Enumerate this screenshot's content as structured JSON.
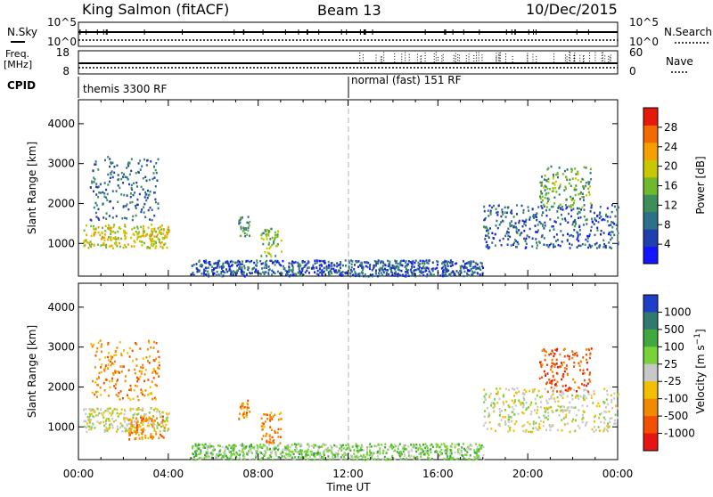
{
  "header": {
    "station": "King Salmon (fitACF)",
    "beam": "Beam 13",
    "date": "10/Dec/2015"
  },
  "status_panels": {
    "nsky_label": "N.Sky",
    "nsky_ticks": [
      "10^5",
      "10^0"
    ],
    "nsearch_label": "N.Search",
    "nsearch_ticks": [
      "10^5",
      "10^0"
    ],
    "freq_label": "Freq.",
    "freq_unit": "[MHz]",
    "freq_ticks": [
      "18",
      "8"
    ],
    "nave_label": "Nave",
    "nave_ticks": [
      "60",
      "0"
    ],
    "cpid_label": "CPID",
    "cpid_segments": [
      {
        "label": "themis 3300 RF",
        "start_h": 0,
        "end_h": 12
      },
      {
        "label": "normal (fast) 151 RF",
        "start_h": 12,
        "end_h": 24
      }
    ]
  },
  "chart_data": [
    {
      "type": "heatmap",
      "name": "power",
      "ylabel": "Slant Range [km]",
      "xlim": [
        0,
        24
      ],
      "ylim": [
        180,
        4600
      ],
      "yticks": [
        1000,
        2000,
        3000,
        4000
      ],
      "colorbar": {
        "label": "Power [dB]",
        "range": [
          0,
          32
        ],
        "ticks": [
          4,
          8,
          12,
          16,
          20,
          24,
          28
        ],
        "colors": [
          "#1414ff",
          "#1f3fae",
          "#2e6f8a",
          "#3c8f5a",
          "#6fba2c",
          "#c9c800",
          "#f5a000",
          "#f26a00",
          "#e51a0a"
        ]
      },
      "blobs": [
        {
          "t0": 0.2,
          "t1": 4.0,
          "r0": 900,
          "r1": 1500,
          "level": 20
        },
        {
          "t0": 0.5,
          "t1": 3.6,
          "r0": 1600,
          "r1": 3200,
          "level": 8
        },
        {
          "t0": 7.1,
          "t1": 7.6,
          "r0": 1200,
          "r1": 1700,
          "level": 12
        },
        {
          "t0": 8.1,
          "t1": 9.0,
          "r0": 700,
          "r1": 1400,
          "level": 16
        },
        {
          "t0": 5.0,
          "t1": 18.0,
          "r0": 200,
          "r1": 600,
          "level": 6
        },
        {
          "t0": 18.0,
          "t1": 24.0,
          "r0": 900,
          "r1": 2000,
          "level": 6
        },
        {
          "t0": 20.5,
          "t1": 22.8,
          "r0": 1900,
          "r1": 3000,
          "level": 14
        }
      ]
    },
    {
      "type": "heatmap",
      "name": "velocity",
      "ylabel": "Slant Range [km]",
      "xlabel": "Time UT",
      "xlim": [
        0,
        24
      ],
      "ylim": [
        180,
        4600
      ],
      "yticks": [
        1000,
        2000,
        3000,
        4000
      ],
      "xticks": [
        "00:00",
        "04:00",
        "08:00",
        "12:00",
        "16:00",
        "20:00",
        "00:00"
      ],
      "colorbar": {
        "label": "Velocity [m s^-1]",
        "ticks": [
          "1000",
          "500",
          "100",
          "25",
          "-25",
          "-100",
          "-500",
          "-1000"
        ],
        "colors": [
          "#1e3ec8",
          "#2e7a6e",
          "#3fa83e",
          "#7ad23a",
          "#c8c8c8",
          "#f2c000",
          "#f28a00",
          "#f25000",
          "#e61414"
        ]
      },
      "blobs": [
        {
          "t0": 0.2,
          "t1": 4.0,
          "r0": 900,
          "r1": 1500,
          "level": 4
        },
        {
          "t0": 0.5,
          "t1": 3.6,
          "r0": 1700,
          "r1": 3200,
          "level": 6
        },
        {
          "t0": 2.2,
          "t1": 3.8,
          "r0": 700,
          "r1": 1300,
          "level": 6
        },
        {
          "t0": 7.1,
          "t1": 7.6,
          "r0": 1200,
          "r1": 1700,
          "level": 6
        },
        {
          "t0": 8.1,
          "t1": 9.0,
          "r0": 600,
          "r1": 1400,
          "level": 6
        },
        {
          "t0": 5.0,
          "t1": 18.0,
          "r0": 200,
          "r1": 600,
          "level": 3
        },
        {
          "t0": 18.0,
          "t1": 24.0,
          "r0": 900,
          "r1": 2000,
          "level": 4
        },
        {
          "t0": 20.5,
          "t1": 22.8,
          "r0": 1900,
          "r1": 3000,
          "level": 7
        }
      ]
    }
  ]
}
